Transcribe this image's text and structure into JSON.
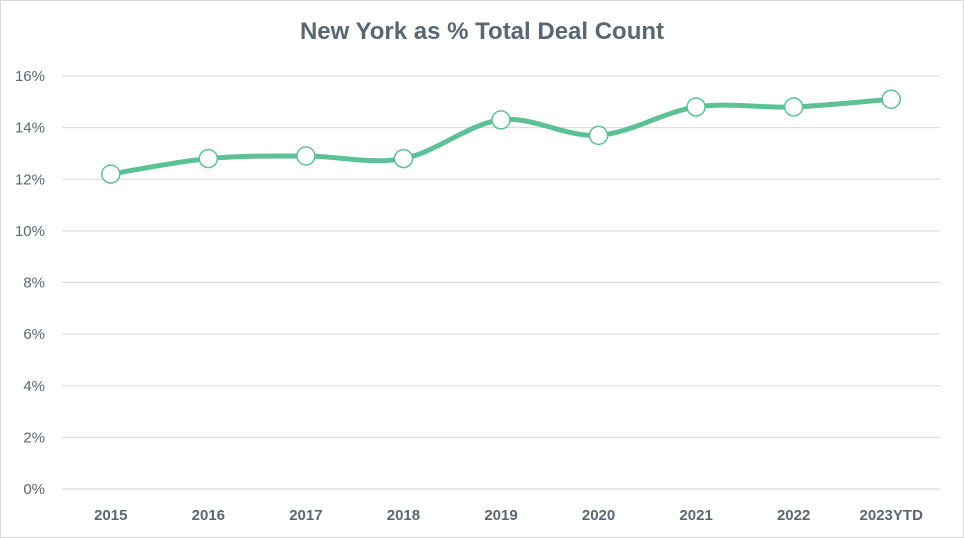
{
  "chart_data": {
    "type": "line",
    "title": "New York as % Total Deal Count",
    "categories": [
      "2015",
      "2016",
      "2017",
      "2018",
      "2019",
      "2020",
      "2021",
      "2022",
      "2023YTD"
    ],
    "series": [
      {
        "values": [
          12.2,
          12.8,
          12.9,
          12.8,
          14.3,
          13.7,
          14.8,
          14.8,
          15.1
        ]
      }
    ],
    "ylim": [
      0,
      16
    ],
    "y_ticks": [
      0,
      2,
      4,
      6,
      8,
      10,
      12,
      14,
      16
    ],
    "y_tick_suffix": "%",
    "grid": true,
    "smooth": true,
    "line_color": "#5cc194",
    "marker_fill": "#ffffff",
    "marker_stroke": "#5cc194"
  }
}
